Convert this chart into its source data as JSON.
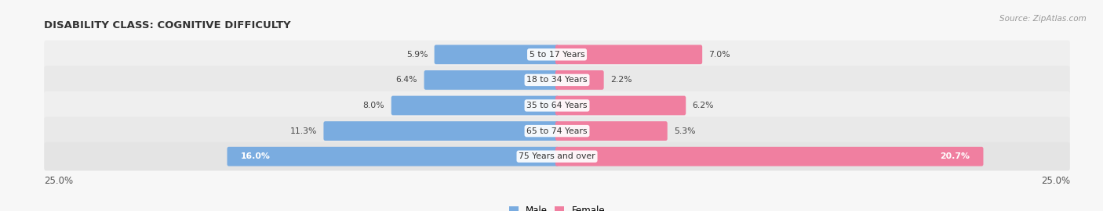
{
  "title": "DISABILITY CLASS: COGNITIVE DIFFICULTY",
  "source": "Source: ZipAtlas.com",
  "categories": [
    "5 to 17 Years",
    "18 to 34 Years",
    "35 to 64 Years",
    "65 to 74 Years",
    "75 Years and over"
  ],
  "male_values": [
    5.9,
    6.4,
    8.0,
    11.3,
    16.0
  ],
  "female_values": [
    7.0,
    2.2,
    6.2,
    5.3,
    20.7
  ],
  "max_val": 25.0,
  "male_color": "#7aace0",
  "female_color": "#f07fa0",
  "row_colors": [
    "#efefef",
    "#e8e8e8",
    "#efefef",
    "#e8e8e8",
    "#e2e2e2"
  ],
  "title_color": "#333333",
  "source_color": "#999999",
  "label_color_dark": "#444444",
  "label_color_white": "#ffffff",
  "bg_color": "#f7f7f7"
}
